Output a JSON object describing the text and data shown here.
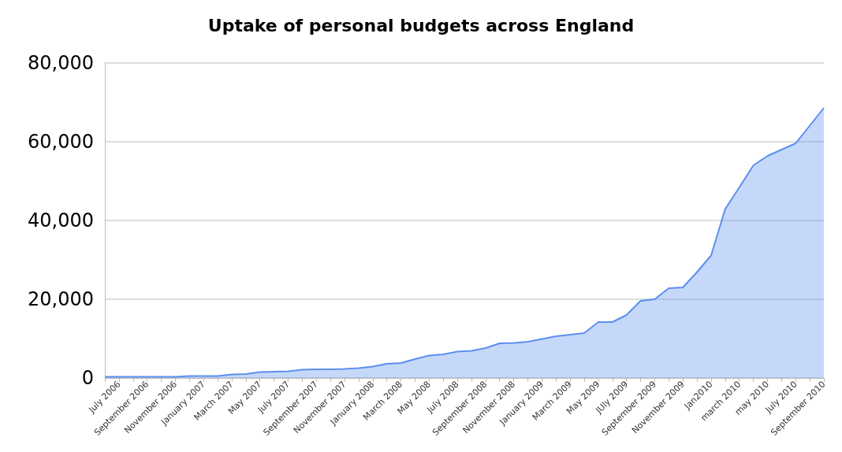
{
  "chart_data": {
    "type": "area",
    "title": "Uptake of personal budgets across England",
    "categories": [
      null,
      "July 2006",
      null,
      "September 2006",
      null,
      "November 2006",
      null,
      "January 2007",
      null,
      "March 2007",
      null,
      "May 2007",
      null,
      "July 2007",
      null,
      "September 2007",
      null,
      "November 2007",
      null,
      "January 2008",
      null,
      "March 2008",
      null,
      "May 2008",
      null,
      "July 2008",
      null,
      "September 2008",
      null,
      "November 2008",
      null,
      "January 2009",
      null,
      "March 2009",
      null,
      "May 2009",
      null,
      "JUly 2009",
      null,
      "September 2009",
      null,
      "November 2009",
      null,
      "Jan2010",
      null,
      "march 2010",
      null,
      "may 2010",
      null,
      "July 2010",
      null,
      "September 2010"
    ],
    "series": [
      {
        "color": "#5b8ff0",
        "values": [
          300,
          300,
          300,
          300,
          300,
          300,
          500,
          500,
          500,
          900,
          1000,
          1500,
          1600,
          1700,
          2100,
          2200,
          2200,
          2300,
          2500,
          2900,
          3600,
          3800,
          4800,
          5700,
          6000,
          6700,
          6900,
          7600,
          8800,
          8900,
          9200,
          9900,
          10600,
          11000,
          11400,
          14200,
          14200,
          16000,
          19600,
          20000,
          22800,
          23000,
          26900,
          31100,
          42900,
          48400,
          54000,
          56400,
          58000,
          59600,
          64100,
          68600
        ]
      }
    ],
    "ylim": [
      0,
      80000
    ],
    "yticks": [
      {
        "value": 0,
        "label": "0"
      },
      {
        "value": 20000,
        "label": "20,000"
      },
      {
        "value": 40000,
        "label": "40,000"
      },
      {
        "value": 60000,
        "label": "60,000"
      },
      {
        "value": 80000,
        "label": "80,000"
      }
    ],
    "grid": "y"
  }
}
